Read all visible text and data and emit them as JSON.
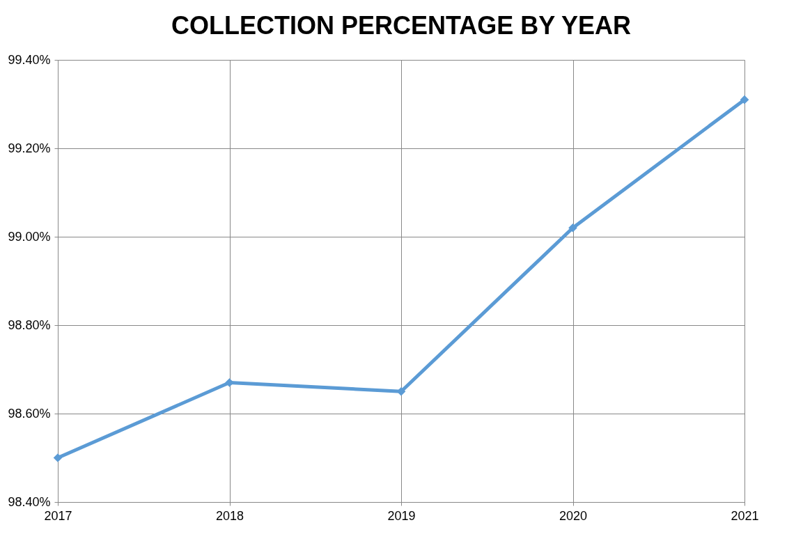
{
  "chart_data": {
    "type": "line",
    "title": "COLLECTION PERCENTAGE BY YEAR",
    "categories": [
      "2017",
      "2018",
      "2019",
      "2020",
      "2021"
    ],
    "series": [
      {
        "color": "#5b9bd5",
        "values": [
          98.5,
          98.67,
          98.65,
          99.02,
          99.31
        ]
      }
    ],
    "ylim": [
      98.4,
      99.4
    ],
    "yticks": [
      {
        "value": 98.4,
        "label": "98.40%"
      },
      {
        "value": 98.6,
        "label": "98.60%"
      },
      {
        "value": 98.8,
        "label": "98.80%"
      },
      {
        "value": 99.0,
        "label": "99.00%"
      },
      {
        "value": 99.2,
        "label": "99.20%"
      },
      {
        "value": 99.4,
        "label": "99.40%"
      }
    ],
    "grid": true,
    "marker": "diamond",
    "line_style": "solid"
  }
}
